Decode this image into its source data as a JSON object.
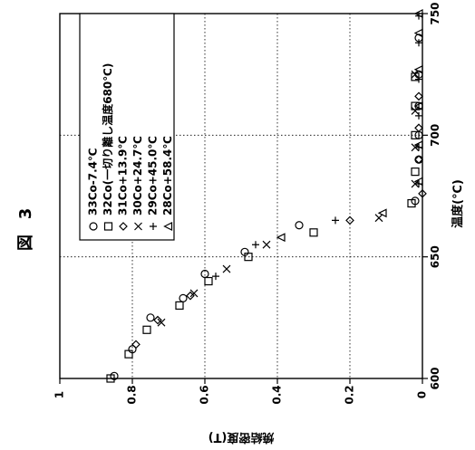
{
  "figure": {
    "label": "図",
    "number": "3"
  },
  "chart_data": {
    "type": "scatter",
    "orientation": "rotated 90° counterclockwise",
    "xlabel": "温度(℃)",
    "ylabel": "焼結密度(T)",
    "xlim": [
      600,
      750
    ],
    "ylim": [
      0,
      1
    ],
    "x_ticks": [
      "600",
      "650",
      "700",
      "750"
    ],
    "y_ticks": [
      "0",
      "0.2",
      "0.4",
      "0.6",
      "0.8",
      "1"
    ],
    "grid": true,
    "legend_position": "top-left",
    "series": [
      {
        "name": "33Co-7.4℃",
        "marker": "circle",
        "points": [
          [
            601,
            0.85
          ],
          [
            612,
            0.8
          ],
          [
            625,
            0.75
          ],
          [
            633,
            0.66
          ],
          [
            643,
            0.6
          ],
          [
            652,
            0.49
          ],
          [
            663,
            0.34
          ],
          [
            673,
            0.02
          ],
          [
            690,
            0.01
          ],
          [
            700,
            0.01
          ],
          [
            712,
            0.01
          ],
          [
            725,
            0.01
          ],
          [
            740,
            0.01
          ]
        ]
      },
      {
        "name": "32Co(一切り離し温度680℃)",
        "marker": "square",
        "points": [
          [
            600,
            0.86
          ],
          [
            610,
            0.81
          ],
          [
            620,
            0.76
          ],
          [
            630,
            0.67
          ],
          [
            640,
            0.59
          ],
          [
            650,
            0.48
          ],
          [
            660,
            0.3
          ],
          [
            672,
            0.03
          ],
          [
            685,
            0.02
          ],
          [
            700,
            0.02
          ],
          [
            712,
            0.02
          ],
          [
            724,
            0.02
          ]
        ]
      },
      {
        "name": "31Co+13.9℃",
        "marker": "diamond",
        "points": [
          [
            614,
            0.79
          ],
          [
            624,
            0.73
          ],
          [
            634,
            0.64
          ],
          [
            665,
            0.2
          ],
          [
            676,
            0.0
          ],
          [
            690,
            0.01
          ],
          [
            703,
            0.01
          ],
          [
            716,
            0.01
          ]
        ]
      },
      {
        "name": "30Co+24.7℃",
        "marker": "x",
        "points": [
          [
            623,
            0.72
          ],
          [
            635,
            0.63
          ],
          [
            645,
            0.54
          ],
          [
            655,
            0.43
          ],
          [
            666,
            0.12
          ],
          [
            680,
            0.02
          ],
          [
            695,
            0.02
          ],
          [
            710,
            0.02
          ],
          [
            725,
            0.02
          ]
        ]
      },
      {
        "name": "29Co+45.0℃",
        "marker": "plus",
        "points": [
          [
            642,
            0.57
          ],
          [
            655,
            0.46
          ],
          [
            665,
            0.24
          ],
          [
            680,
            0.01
          ],
          [
            695,
            0.01
          ],
          [
            708,
            0.01
          ],
          [
            723,
            0.01
          ],
          [
            738,
            0.01
          ],
          [
            749,
            0.01
          ]
        ]
      },
      {
        "name": "28Co+58.4℃",
        "marker": "triangle",
        "points": [
          [
            658,
            0.39
          ],
          [
            668,
            0.11
          ],
          [
            681,
            0.01
          ],
          [
            696,
            0.01
          ],
          [
            712,
            0.01
          ],
          [
            727,
            0.01
          ],
          [
            742,
            0.01
          ],
          [
            750,
            0.01
          ]
        ]
      }
    ]
  }
}
